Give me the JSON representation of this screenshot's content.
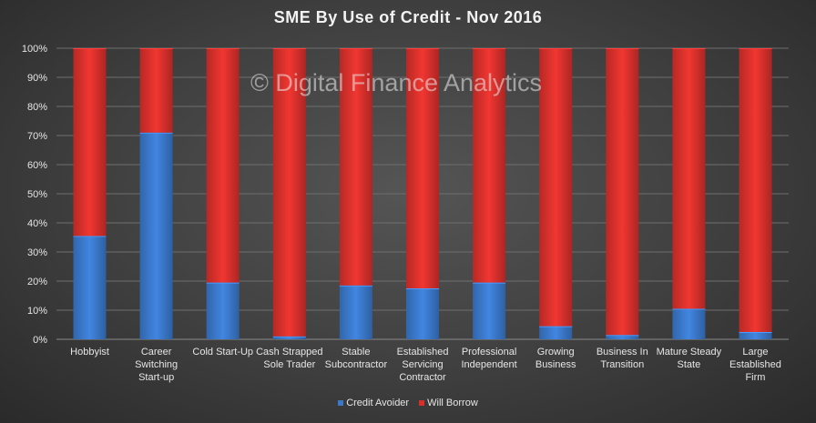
{
  "chart_data": {
    "type": "bar",
    "stacked": true,
    "title": "SME By Use of Credit  - Nov 2016",
    "watermark": "© Digital Finance Analytics",
    "categories": [
      [
        "Hobbyist"
      ],
      [
        "Career",
        "Switching",
        "Start-up"
      ],
      [
        "Cold Start-Up"
      ],
      [
        "Cash Strapped",
        "Sole Trader"
      ],
      [
        "Stable",
        "Subcontractor"
      ],
      [
        "Established",
        "Servicing",
        "Contractor"
      ],
      [
        "Professional",
        "Independent"
      ],
      [
        "Growing",
        "Business"
      ],
      [
        "Business In",
        "Transition"
      ],
      [
        "Mature Steady",
        "State"
      ],
      [
        "Large",
        "Established",
        "Firm"
      ]
    ],
    "series": [
      {
        "name": "Credit Avoider",
        "color": "#3a78c9",
        "values": [
          35.5,
          71,
          19.5,
          1,
          18.5,
          17.5,
          19.5,
          4.5,
          1.5,
          10.5,
          2.5
        ]
      },
      {
        "name": "Will Borrow",
        "color": "#d7302c",
        "values": [
          64.5,
          29,
          80.5,
          99,
          81.5,
          82.5,
          80.5,
          95.5,
          98.5,
          89.5,
          97.5
        ]
      }
    ],
    "ylim": [
      0,
      100
    ],
    "yticks": [
      "0%",
      "10%",
      "20%",
      "30%",
      "40%",
      "50%",
      "60%",
      "70%",
      "80%",
      "90%",
      "100%"
    ],
    "grid": true,
    "legend_position": "bottom"
  }
}
